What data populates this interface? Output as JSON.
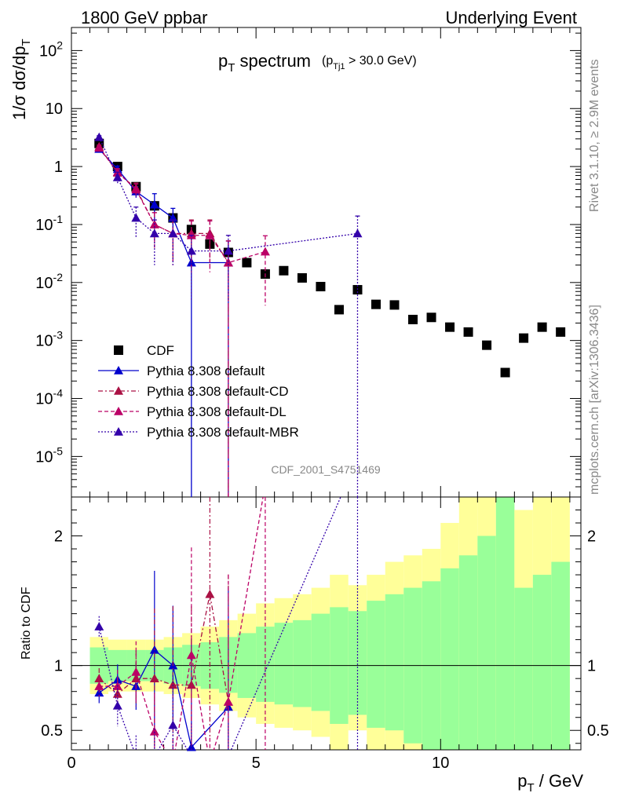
{
  "header": {
    "left": "1800 GeV ppbar",
    "right": "Underlying Event"
  },
  "side": {
    "rivet": "Rivet 3.1.10, ≥ 2.9M events",
    "mcplots": "mcplots.cern.ch [arXiv:1306.3436]"
  },
  "watermark": "CDF_2001_S4751469",
  "title": {
    "main": "p",
    "main_sub": "T",
    "main_rest": " spectrum",
    "cut_p": "(p",
    "cut_sub": "Tj1",
    "cut_rest": " > 30.0 GeV)"
  },
  "colors": {
    "cdf": "#000000",
    "default": "#0000cc",
    "cd": "#aa1144",
    "dl": "#bb0066",
    "mbr": "#3300aa",
    "band_green": "#99ff99",
    "band_yellow": "#ffff99"
  },
  "chart_data": {
    "type": "scatter",
    "x_label": "p_T / GeV",
    "y_label": "1/σ dσ/dp_T",
    "ratio_label": "Ratio to CDF",
    "xlim": [
      0,
      13.8
    ],
    "ylim": [
      2e-06,
      250
    ],
    "ratio_ylim": [
      0.35,
      2.3
    ],
    "y_scale": "log",
    "legend_position": "bottom-left",
    "x_ticks": [
      "0",
      "5",
      "10"
    ],
    "y_ticks": [
      "10^{-5}",
      "10^{-4}",
      "10^{-3}",
      "10^{-2}",
      "10^{-1}",
      "1",
      "10",
      "10^{2}"
    ],
    "ratio_ticks": [
      "0.5",
      "1",
      "2"
    ],
    "series": [
      {
        "name": "CDF",
        "key": "cdf",
        "x": [
          0.75,
          1.25,
          1.75,
          2.25,
          2.75,
          3.25,
          3.75,
          4.25,
          4.75,
          5.25,
          5.75,
          6.25,
          6.75,
          7.25,
          7.75,
          8.25,
          8.75,
          9.25,
          9.75,
          10.25,
          10.75,
          11.25,
          11.75,
          12.25,
          12.75,
          13.25
        ],
        "y": [
          2.5,
          1.0,
          0.45,
          0.21,
          0.13,
          0.082,
          0.046,
          0.033,
          0.022,
          0.014,
          0.016,
          0.012,
          0.0085,
          0.0034,
          0.0075,
          0.0042,
          0.0041,
          0.0023,
          0.0025,
          0.0017,
          0.0014,
          0.00083,
          0.00028,
          0.0011,
          0.0017,
          0.0014
        ]
      },
      {
        "name": "Pythia 8.308 default",
        "key": "default",
        "x": [
          0.75,
          1.25,
          1.75,
          2.25,
          2.75,
          3.25,
          4.25
        ],
        "y": [
          2.0,
          0.9,
          0.37,
          0.22,
          0.13,
          0.022,
          0.022
        ],
        "yerr": [
          0.15,
          0.12,
          0.08,
          0.12,
          0.06,
          0.05,
          0.03
        ],
        "ratio": [
          0.79,
          0.89,
          0.84,
          1.12,
          1.0,
          0.37,
          0.68
        ]
      },
      {
        "name": "Pythia 8.308 default-CD",
        "key": "cd",
        "x": [
          0.75,
          1.25,
          1.75,
          2.25,
          2.75,
          3.25,
          3.75,
          4.25
        ],
        "y": [
          2.2,
          0.78,
          0.42,
          0.1,
          0.07,
          0.07,
          0.07,
          0.022
        ],
        "yerr": [
          0.15,
          0.12,
          0.1,
          0.06,
          0.05,
          0.05,
          0.05,
          0.03
        ],
        "ratio": [
          0.9,
          0.78,
          0.9,
          0.9,
          0.85,
          0.85,
          1.55,
          0.72
        ]
      },
      {
        "name": "Pythia 8.308 default-DL",
        "key": "dl",
        "x": [
          0.75,
          1.25,
          1.75,
          2.25,
          2.75,
          3.25,
          3.75,
          4.25,
          5.25
        ],
        "y": [
          2.1,
          0.8,
          0.4,
          0.1,
          0.07,
          0.065,
          0.065,
          0.022,
          0.034
        ],
        "yerr": [
          0.15,
          0.12,
          0.1,
          0.06,
          0.05,
          0.05,
          0.05,
          0.03,
          0.03
        ],
        "ratio": [
          0.84,
          0.84,
          0.95,
          0.49,
          0.25,
          1.08,
          0.25,
          0.72,
          2.4
        ]
      },
      {
        "name": "Pythia 8.308 default-MBR",
        "key": "mbr",
        "x": [
          0.75,
          1.25,
          1.75,
          2.25,
          2.75,
          3.25,
          4.25,
          7.75
        ],
        "y": [
          3.2,
          0.65,
          0.13,
          0.07,
          0.07,
          0.035,
          0.035,
          0.07
        ],
        "yerr": [
          0.2,
          0.15,
          0.07,
          0.05,
          0.05,
          0.03,
          0.03,
          0.07
        ],
        "ratio": [
          1.3,
          0.69,
          0.3,
          0.3,
          0.54,
          0.3,
          0.3,
          2.6
        ]
      }
    ],
    "bands": {
      "edges": [
        0.5,
        1.0,
        1.5,
        2.0,
        2.5,
        3.0,
        3.5,
        4.0,
        4.5,
        5.0,
        5.5,
        6.0,
        6.5,
        7.0,
        7.5,
        8.0,
        8.5,
        9.0,
        9.5,
        10.0,
        10.5,
        11.0,
        11.5,
        12.0,
        12.5,
        13.0,
        13.5
      ],
      "green_lo": [
        0.86,
        0.88,
        0.88,
        0.88,
        0.86,
        0.84,
        0.82,
        0.79,
        0.75,
        0.72,
        0.7,
        0.68,
        0.65,
        0.55,
        0.62,
        0.52,
        0.5,
        0.4,
        0.35,
        0.3,
        0.25,
        0.2,
        0.2,
        0.2,
        0.2,
        0.2
      ],
      "green_hi": [
        1.14,
        1.12,
        1.12,
        1.12,
        1.14,
        1.16,
        1.18,
        1.22,
        1.25,
        1.3,
        1.33,
        1.35,
        1.4,
        1.45,
        1.42,
        1.5,
        1.55,
        1.6,
        1.65,
        1.75,
        1.85,
        2.0,
        2.6,
        1.6,
        1.7,
        1.8
      ],
      "yellow_lo": [
        0.78,
        0.8,
        0.8,
        0.8,
        0.78,
        0.75,
        0.7,
        0.65,
        0.6,
        0.55,
        0.52,
        0.5,
        0.45,
        0.2,
        0.5,
        0.2,
        0.2,
        0.2,
        0.2,
        0.2,
        0.2,
        0.2,
        0.2,
        0.2,
        0.2,
        0.2
      ],
      "yellow_hi": [
        1.22,
        1.2,
        1.2,
        1.2,
        1.22,
        1.25,
        1.3,
        1.35,
        1.4,
        1.48,
        1.52,
        1.55,
        1.6,
        1.7,
        1.62,
        1.7,
        1.8,
        1.85,
        1.9,
        2.1,
        2.3,
        2.6,
        2.6,
        2.2,
        2.5,
        2.6
      ]
    }
  }
}
